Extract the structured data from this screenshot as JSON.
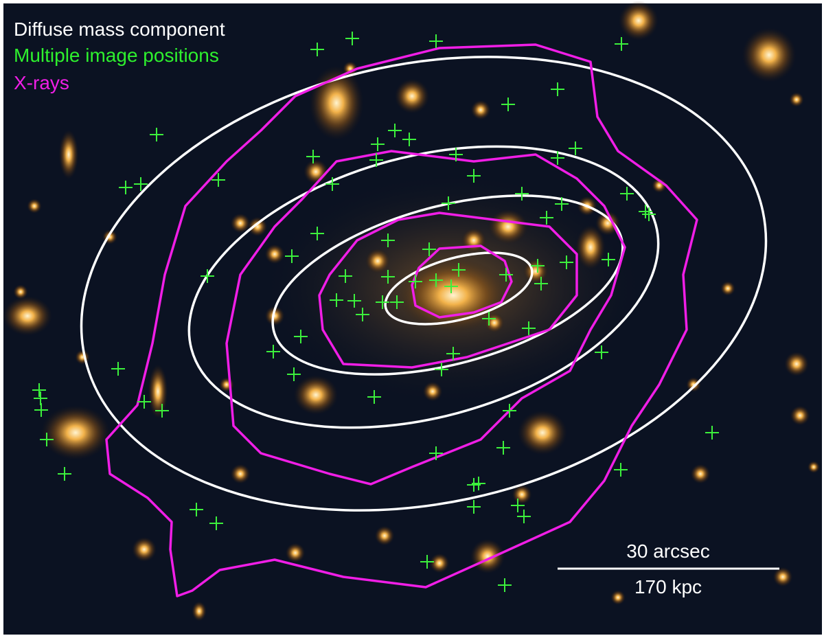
{
  "legend": {
    "items": [
      "Diffuse mass component",
      "Multiple image positions",
      "X-rays"
    ]
  },
  "scale_bar": {
    "top_label": "30 arcsec",
    "bottom_label": "170 kpc"
  }
}
